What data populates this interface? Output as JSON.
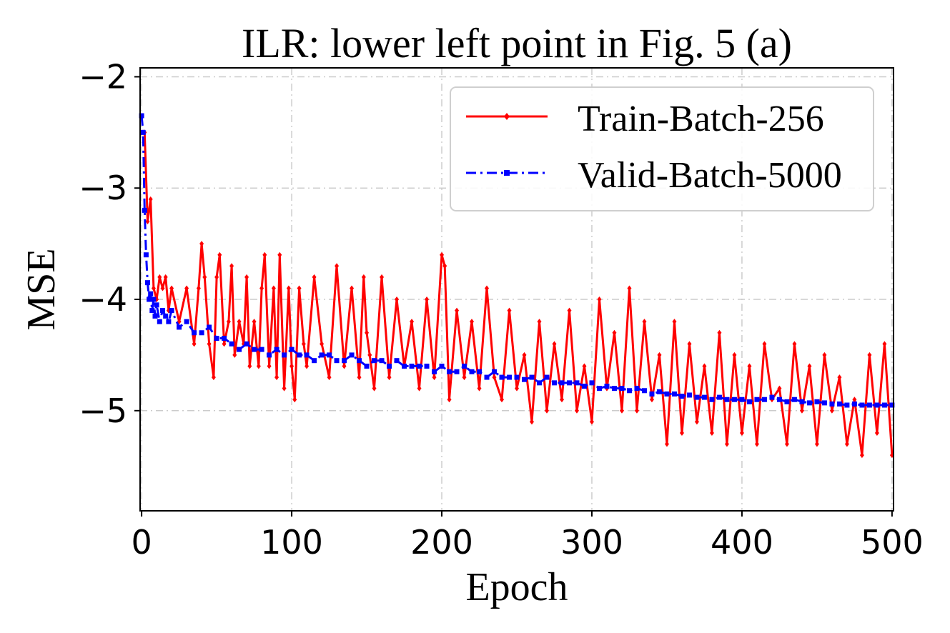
{
  "chart_data": {
    "type": "line",
    "title": "ILR: lower left point in Fig. 5 (a)",
    "xlabel": "Epoch",
    "ylabel": "MSE",
    "xlim": [
      -1,
      501
    ],
    "ylim": [
      -5.9,
      -1.92
    ],
    "xticks": [
      0,
      100,
      200,
      300,
      400,
      500
    ],
    "xtick_labels": [
      "0",
      "100",
      "200",
      "300",
      "400",
      "500"
    ],
    "yticks": [
      -2,
      -3,
      -4,
      -5
    ],
    "ytick_labels": [
      "−2",
      "−3",
      "−4",
      "−5"
    ],
    "grid": true,
    "legend_position": "top-right",
    "colors": {
      "train": "#ff0000",
      "valid": "#0000ff",
      "grid": "#cccccc"
    },
    "series": [
      {
        "name": "Train-Batch-256",
        "style": "solid",
        "marker": "diamond",
        "x": [
          0,
          2,
          4,
          6,
          8,
          10,
          12,
          14,
          16,
          18,
          20,
          25,
          30,
          35,
          38,
          40,
          42,
          45,
          48,
          50,
          52,
          55,
          58,
          60,
          62,
          65,
          68,
          70,
          72,
          75,
          78,
          80,
          82,
          85,
          88,
          90,
          92,
          95,
          98,
          100,
          102,
          105,
          108,
          110,
          115,
          120,
          125,
          130,
          135,
          140,
          145,
          148,
          150,
          152,
          155,
          160,
          165,
          170,
          175,
          180,
          185,
          190,
          195,
          200,
          202,
          205,
          210,
          215,
          220,
          225,
          230,
          235,
          240,
          245,
          250,
          255,
          260,
          265,
          270,
          275,
          280,
          285,
          290,
          295,
          300,
          305,
          310,
          315,
          320,
          325,
          330,
          335,
          340,
          345,
          350,
          355,
          360,
          365,
          370,
          375,
          380,
          385,
          390,
          395,
          400,
          405,
          410,
          415,
          420,
          425,
          430,
          435,
          440,
          445,
          450,
          455,
          460,
          465,
          470,
          475,
          480,
          485,
          490,
          495,
          500
        ],
        "values": [
          -2.5,
          -2.5,
          -3.3,
          -3.1,
          -3.9,
          -4.0,
          -3.8,
          -3.9,
          -3.8,
          -4.1,
          -3.9,
          -4.2,
          -3.9,
          -4.4,
          -3.9,
          -3.5,
          -3.8,
          -4.4,
          -4.7,
          -3.8,
          -3.6,
          -4.4,
          -4.2,
          -3.7,
          -4.5,
          -4.2,
          -4.4,
          -3.8,
          -4.6,
          -4.2,
          -4.6,
          -3.9,
          -3.6,
          -4.6,
          -3.9,
          -4.7,
          -3.6,
          -4.8,
          -3.9,
          -4.6,
          -4.9,
          -3.9,
          -4.4,
          -4.6,
          -3.8,
          -4.4,
          -4.7,
          -3.7,
          -4.6,
          -3.9,
          -4.7,
          -3.8,
          -4.3,
          -4.5,
          -4.8,
          -3.8,
          -4.7,
          -4.0,
          -4.6,
          -4.2,
          -4.8,
          -4.0,
          -4.7,
          -3.6,
          -3.7,
          -4.9,
          -4.1,
          -4.7,
          -4.2,
          -4.8,
          -3.9,
          -4.7,
          -4.9,
          -4.1,
          -4.8,
          -4.5,
          -5.1,
          -4.2,
          -5.0,
          -4.4,
          -4.9,
          -4.1,
          -5.0,
          -4.6,
          -5.1,
          -4.0,
          -4.8,
          -4.3,
          -5.0,
          -3.9,
          -5.0,
          -4.2,
          -4.9,
          -4.5,
          -5.3,
          -4.2,
          -5.2,
          -4.4,
          -5.1,
          -4.6,
          -5.2,
          -4.3,
          -5.3,
          -4.5,
          -5.2,
          -4.6,
          -5.3,
          -4.4,
          -4.9,
          -4.8,
          -5.3,
          -4.4,
          -5.0,
          -4.6,
          -5.3,
          -4.5,
          -5.0,
          -4.7,
          -5.3,
          -4.9,
          -5.4,
          -4.5,
          -5.2,
          -4.4,
          -5.4
        ]
      },
      {
        "name": "Valid-Batch-5000",
        "style": "dash-dot",
        "marker": "square",
        "x": [
          0,
          1,
          2,
          3,
          4,
          5,
          6,
          7,
          8,
          9,
          10,
          12,
          14,
          16,
          18,
          20,
          25,
          30,
          35,
          40,
          45,
          50,
          55,
          60,
          65,
          70,
          75,
          80,
          85,
          90,
          95,
          100,
          105,
          110,
          115,
          120,
          125,
          130,
          135,
          140,
          145,
          150,
          155,
          160,
          165,
          170,
          175,
          180,
          185,
          190,
          195,
          200,
          205,
          210,
          215,
          220,
          225,
          230,
          235,
          240,
          245,
          250,
          255,
          260,
          265,
          270,
          275,
          280,
          285,
          290,
          295,
          300,
          305,
          310,
          315,
          320,
          325,
          330,
          335,
          340,
          345,
          350,
          355,
          360,
          365,
          370,
          375,
          380,
          385,
          390,
          395,
          400,
          405,
          410,
          415,
          420,
          425,
          430,
          435,
          440,
          445,
          450,
          455,
          460,
          465,
          470,
          475,
          480,
          485,
          490,
          495,
          500
        ],
        "values": [
          -2.35,
          -2.5,
          -3.2,
          -3.6,
          -3.85,
          -4.0,
          -3.95,
          -4.1,
          -4.0,
          -4.15,
          -4.05,
          -4.2,
          -4.1,
          -4.15,
          -4.2,
          -4.1,
          -4.25,
          -4.2,
          -4.3,
          -4.3,
          -4.25,
          -4.35,
          -4.35,
          -4.4,
          -4.45,
          -4.4,
          -4.45,
          -4.45,
          -4.5,
          -4.45,
          -4.5,
          -4.45,
          -4.5,
          -4.5,
          -4.55,
          -4.5,
          -4.5,
          -4.55,
          -4.55,
          -4.5,
          -4.55,
          -4.6,
          -4.55,
          -4.55,
          -4.6,
          -4.55,
          -4.6,
          -4.6,
          -4.6,
          -4.6,
          -4.65,
          -4.6,
          -4.65,
          -4.65,
          -4.6,
          -4.65,
          -4.65,
          -4.7,
          -4.65,
          -4.7,
          -4.7,
          -4.7,
          -4.72,
          -4.7,
          -4.75,
          -4.7,
          -4.75,
          -4.75,
          -4.75,
          -4.75,
          -4.78,
          -4.75,
          -4.8,
          -4.78,
          -4.8,
          -4.8,
          -4.82,
          -4.8,
          -4.82,
          -4.85,
          -4.83,
          -4.85,
          -4.85,
          -4.87,
          -4.86,
          -4.88,
          -4.88,
          -4.9,
          -4.88,
          -4.9,
          -4.9,
          -4.9,
          -4.92,
          -4.9,
          -4.9,
          -4.88,
          -4.9,
          -4.92,
          -4.9,
          -4.92,
          -4.93,
          -4.92,
          -4.93,
          -4.94,
          -4.94,
          -4.95,
          -4.94,
          -4.95,
          -4.95,
          -4.95,
          -4.95,
          -4.95
        ]
      }
    ]
  }
}
